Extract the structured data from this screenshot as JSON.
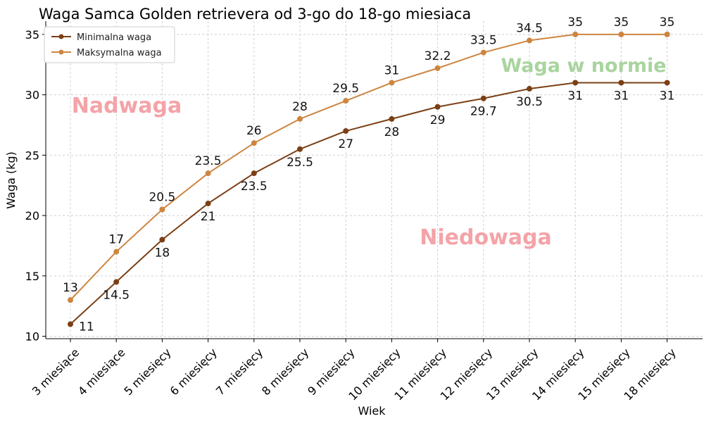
{
  "chart_data": {
    "type": "line",
    "title": "Waga Samca Golden retrievera od 3-go do 18-go miesiaca",
    "xlabel": "Wiek",
    "ylabel": "Waga (kg)",
    "categories": [
      "3 miesiące",
      "4 miesiące",
      "5 miesięcy",
      "6 miesięcy",
      "7 miesięcy",
      "8 miesięcy",
      "9 miesięcy",
      "10 miesięcy",
      "11 miesięcy",
      "12 miesięcy",
      "13 miesięcy",
      "14 miesięcy",
      "15 miesięcy",
      "18 miesięcy"
    ],
    "yticks": [
      10,
      15,
      20,
      25,
      30,
      35
    ],
    "ylim": [
      9.8,
      36.1
    ],
    "grid": true,
    "legend_position": "top-left",
    "series": [
      {
        "name": "Minimalna waga",
        "color": "#7b3f14",
        "values": [
          11,
          14.5,
          18,
          21,
          23.5,
          25.5,
          27,
          28,
          29,
          29.7,
          30.5,
          31,
          31,
          31
        ],
        "value_labels": [
          "11",
          "14.5",
          "18",
          "21",
          "23.5",
          "25.5",
          "27",
          "28",
          "29",
          "29.7",
          "30.5",
          "31",
          "31",
          "31"
        ]
      },
      {
        "name": "Maksymalna waga",
        "color": "#cd853f",
        "values": [
          13,
          17,
          20.5,
          23.5,
          26,
          28,
          29.5,
          31,
          32.2,
          33.5,
          34.5,
          35,
          35,
          35
        ],
        "value_labels": [
          "13",
          "17",
          "20.5",
          "23.5",
          "26",
          "28",
          "29.5",
          "31",
          "32.2",
          "33.5",
          "34.5",
          "35",
          "35",
          "35"
        ]
      }
    ],
    "annotations": [
      {
        "text": "Nadwaga",
        "color": "#f4a3a8"
      },
      {
        "text": "Waga w normie",
        "color": "#a9d49e"
      },
      {
        "text": "Niedowaga",
        "color": "#f4a3a8"
      }
    ]
  }
}
